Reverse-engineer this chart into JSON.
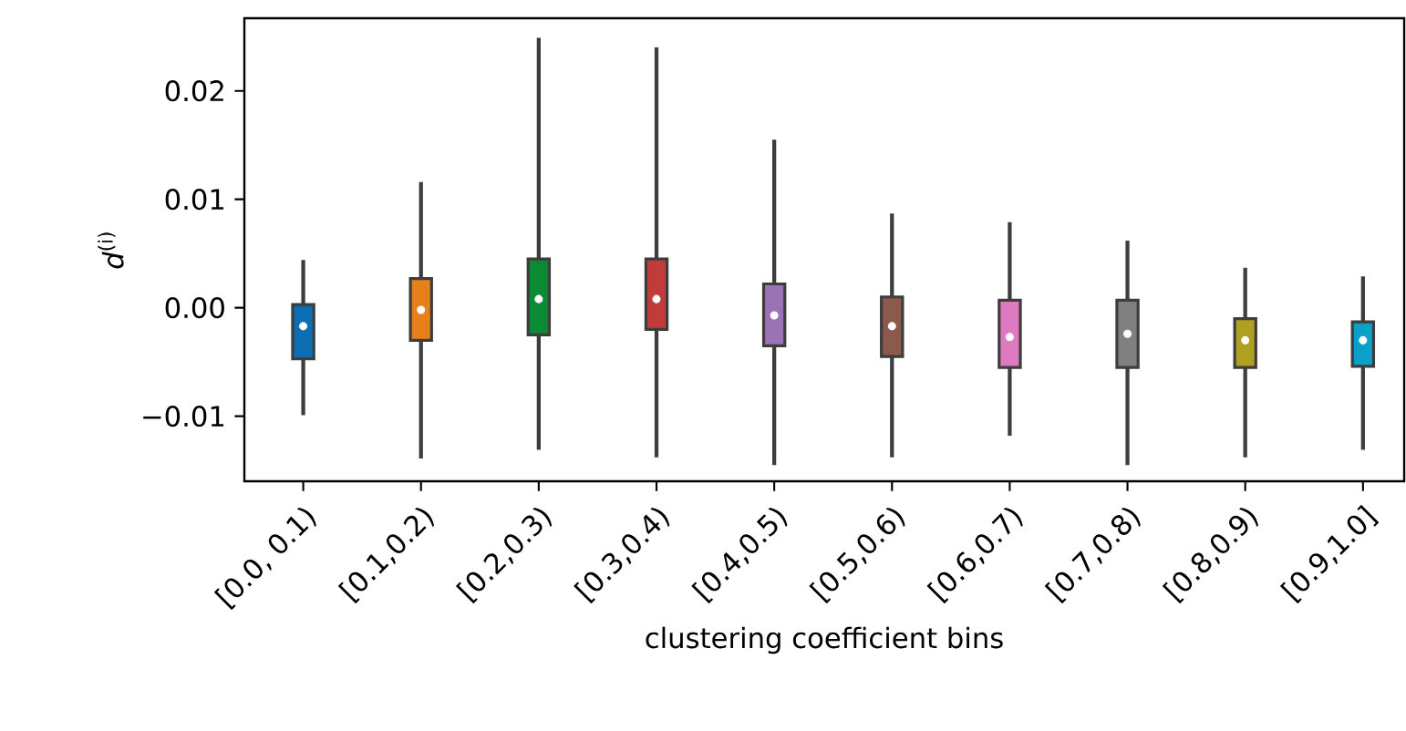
{
  "chart_data": {
    "type": "box",
    "xlabel": "clustering coefficient bins",
    "ylabel": "*d*$^{(i)}$",
    "categories": [
      "[0.0, 0.1)",
      "[0.1,0.2)",
      "[0.2,0.3)",
      "[0.3,0.4)",
      "[0.4,0.5)",
      "[0.5,0.6)",
      "[0.6,0.7)",
      "[0.7,0.8)",
      "[0.8,0.9)",
      "[0.9,1.0]"
    ],
    "colors": [
      "#0a6eb0",
      "#e8801a",
      "#0b8a34",
      "#c03b3a",
      "#9a72b5",
      "#8c5a4c",
      "#e07ac0",
      "#808080",
      "#b0a020",
      "#0aa0c8"
    ],
    "boxes": [
      {
        "low": -0.0099,
        "q1": -0.0047,
        "median": -0.0017,
        "q3": 0.0003,
        "high": 0.0044
      },
      {
        "low": -0.0139,
        "q1": -0.003,
        "median": -0.0002,
        "q3": 0.0027,
        "high": 0.0116
      },
      {
        "low": -0.0131,
        "q1": -0.0025,
        "median": 0.0008,
        "q3": 0.0045,
        "high": 0.0249
      },
      {
        "low": -0.0138,
        "q1": -0.002,
        "median": 0.0008,
        "q3": 0.0045,
        "high": 0.024
      },
      {
        "low": -0.0145,
        "q1": -0.0035,
        "median": -0.0007,
        "q3": 0.0022,
        "high": 0.0155
      },
      {
        "low": -0.0138,
        "q1": -0.0045,
        "median": -0.0017,
        "q3": 0.001,
        "high": 0.0087
      },
      {
        "low": -0.0118,
        "q1": -0.0055,
        "median": -0.0027,
        "q3": 0.0007,
        "high": 0.0079
      },
      {
        "low": -0.0145,
        "q1": -0.0055,
        "median": -0.0024,
        "q3": 0.0007,
        "high": 0.0062
      },
      {
        "low": -0.0138,
        "q1": -0.0055,
        "median": -0.003,
        "q3": -0.001,
        "high": 0.0037
      },
      {
        "low": -0.0131,
        "q1": -0.0054,
        "median": -0.003,
        "q3": -0.0013,
        "high": 0.0029
      }
    ],
    "ylim": [
      -0.016,
      0.0267
    ],
    "yticks": [
      {
        "value": -0.01,
        "label": "−0.01"
      },
      {
        "value": 0.0,
        "label": "0.00"
      },
      {
        "value": 0.01,
        "label": "0.01"
      },
      {
        "value": 0.02,
        "label": "0.02"
      }
    ]
  }
}
